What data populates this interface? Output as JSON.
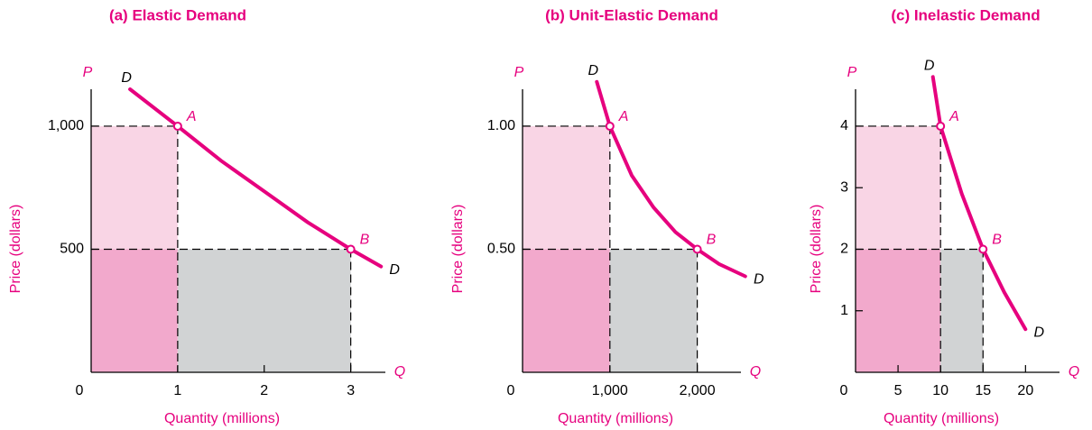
{
  "chart_data": [
    {
      "type": "line",
      "title": "(a) Elastic Demand",
      "xlabel": "Quantity (millions)",
      "ylabel": "Price (dollars)",
      "x_axis_letter": "Q",
      "y_axis_letter": "P",
      "xlim": [
        0,
        3.4
      ],
      "ylim": [
        0,
        1150
      ],
      "xticks": [
        0,
        1,
        2,
        3
      ],
      "yticks": [
        500,
        {
          "value": 1000,
          "label": "1,000"
        }
      ],
      "series": [
        {
          "name": "D",
          "color": "#e6007e",
          "x": [
            0.45,
            1,
            1.5,
            2,
            2.5,
            3,
            3.35
          ],
          "values": [
            1150,
            1000,
            860,
            735,
            610,
            500,
            430
          ]
        }
      ],
      "points": [
        {
          "label": "A",
          "x": 1,
          "y": 1000
        },
        {
          "label": "B",
          "x": 3,
          "y": 500
        }
      ],
      "rect_colors": [
        "#f9d5e5",
        "#f2a9cc",
        "#d1d3d4"
      ]
    },
    {
      "type": "line",
      "title": "(b) Unit-Elastic Demand",
      "xlabel": "Quantity (millions)",
      "ylabel": "Price (dollars)",
      "x_axis_letter": "Q",
      "y_axis_letter": "P",
      "xlim": [
        0,
        2500
      ],
      "ylim": [
        0,
        1.15
      ],
      "xticks": [
        0,
        {
          "value": 1000,
          "label": "1,000"
        },
        {
          "value": 2000,
          "label": "2,000"
        }
      ],
      "yticks": [
        {
          "value": 0.5,
          "label": "0.50"
        },
        {
          "value": 1,
          "label": "1.00"
        }
      ],
      "series": [
        {
          "name": "D",
          "color": "#e6007e",
          "x": [
            850,
            1000,
            1250,
            1500,
            1750,
            2000,
            2250,
            2550
          ],
          "values": [
            1.18,
            1.0,
            0.8,
            0.67,
            0.57,
            0.5,
            0.44,
            0.39
          ]
        }
      ],
      "points": [
        {
          "label": "A",
          "x": 1000,
          "y": 1
        },
        {
          "label": "B",
          "x": 2000,
          "y": 0.5
        }
      ],
      "rect_colors": [
        "#f9d5e5",
        "#f2a9cc",
        "#d1d3d4"
      ]
    },
    {
      "type": "line",
      "title": "(c) Inelastic Demand",
      "xlabel": "Quantity (millions)",
      "ylabel": "Price (dollars)",
      "x_axis_letter": "Q",
      "y_axis_letter": "P",
      "xlim": [
        0,
        24
      ],
      "ylim": [
        0,
        4.6
      ],
      "xticks": [
        0,
        5,
        10,
        15,
        20
      ],
      "yticks": [
        1,
        2,
        3,
        4
      ],
      "series": [
        {
          "name": "D",
          "color": "#e6007e",
          "x": [
            9.1,
            10,
            12.5,
            15,
            17.5,
            20
          ],
          "values": [
            4.8,
            4.0,
            2.9,
            2.0,
            1.3,
            0.7
          ]
        }
      ],
      "points": [
        {
          "label": "A",
          "x": 10,
          "y": 4
        },
        {
          "label": "B",
          "x": 15,
          "y": 2
        }
      ],
      "rect_colors": [
        "#f9d5e5",
        "#f2a9cc",
        "#d1d3d4"
      ]
    }
  ]
}
